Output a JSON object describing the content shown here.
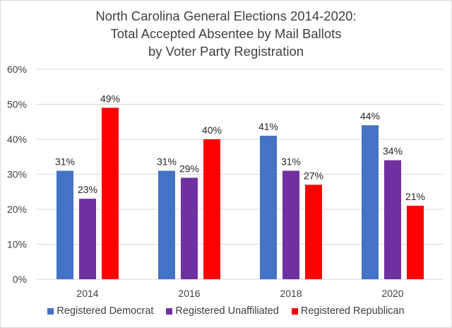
{
  "chart_data": {
    "type": "bar",
    "title_lines": [
      "North Carolina General Elections 2014-2020:",
      "Total Accepted Absentee by Mail Ballots",
      "by Voter Party Registration"
    ],
    "xlabel": "",
    "ylabel": "",
    "ylim": [
      0,
      60
    ],
    "yticks": [
      0,
      10,
      20,
      30,
      40,
      50,
      60
    ],
    "ytick_labels": [
      "0%",
      "10%",
      "20%",
      "30%",
      "40%",
      "50%",
      "60%"
    ],
    "grid": true,
    "categories": [
      "2014",
      "2016",
      "2018",
      "2020"
    ],
    "series": [
      {
        "name": "Registered Democrat",
        "color": "#4472C4",
        "values": [
          31,
          31,
          41,
          44
        ],
        "labels": [
          "31%",
          "31%",
          "41%",
          "44%"
        ]
      },
      {
        "name": "Registered Unaffiliated",
        "color": "#7030A0",
        "values": [
          23,
          29,
          31,
          34
        ],
        "labels": [
          "23%",
          "29%",
          "31%",
          "34%"
        ]
      },
      {
        "name": "Registered Republican",
        "color": "#FF0000",
        "values": [
          49,
          40,
          27,
          21
        ],
        "labels": [
          "49%",
          "40%",
          "27%",
          "21%"
        ]
      }
    ],
    "legend_position": "bottom"
  }
}
